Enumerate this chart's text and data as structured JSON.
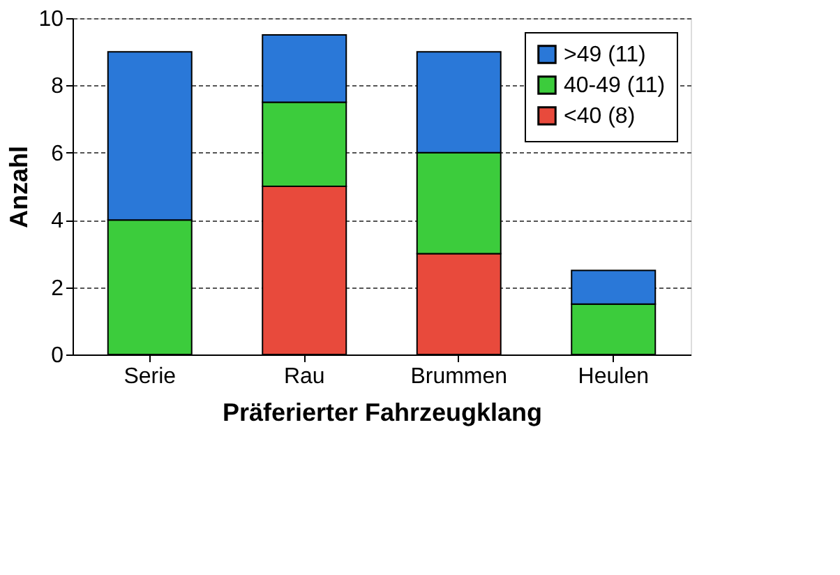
{
  "chart_data": {
    "type": "bar",
    "stacked": true,
    "xlabel": "Präferierter Fahrzeugklang",
    "ylabel": "Anzahl",
    "categories": [
      "Serie",
      "Rau",
      "Brummen",
      "Heulen"
    ],
    "series": [
      {
        "name": "<40 (8)",
        "color": "#e84a3c",
        "values": [
          0,
          5,
          3,
          0
        ]
      },
      {
        "name": "40-49 (11)",
        "color": "#3ccc3c",
        "values": [
          4,
          2.5,
          3,
          1.5
        ]
      },
      {
        "name": ">49 (11)",
        "color": "#2a78d8",
        "values": [
          5,
          2,
          3,
          1
        ]
      }
    ],
    "ylim": [
      0,
      10
    ],
    "yticks": [
      0,
      2,
      4,
      6,
      8,
      10
    ],
    "grid": "y",
    "legend": "top right"
  }
}
